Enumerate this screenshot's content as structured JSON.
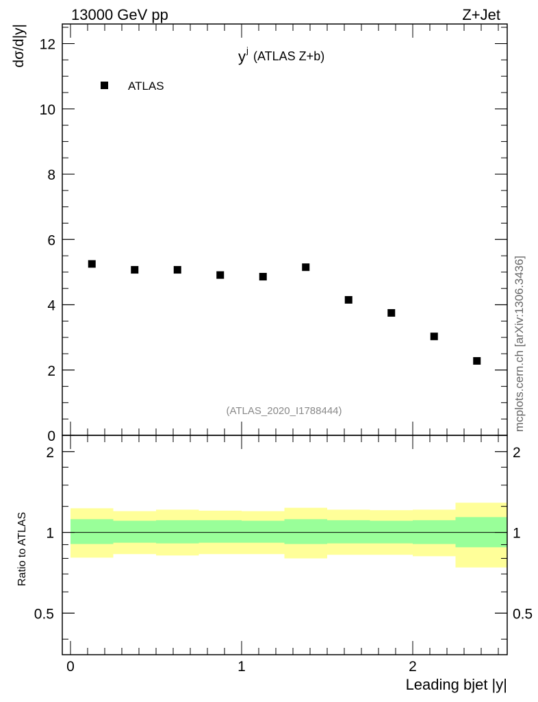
{
  "header": {
    "left": "13000 GeV pp",
    "right": "Z+Jet"
  },
  "side_label": "mcplots.cern.ch [arXiv:1306.3436]",
  "chart_data": [
    {
      "type": "scatter",
      "panel": "main",
      "title_main": "y",
      "title_sup": "j",
      "title_rest": "(ATLAS Z+b)",
      "ylabel": "dσ/d|y|",
      "analysis_label": "(ATLAS_2020_I1788444)",
      "legend": {
        "label": "ATLAS",
        "placement": "top-left"
      },
      "xlim": [
        0,
        2.55
      ],
      "ylim": [
        0,
        12.6
      ],
      "yticks": [
        0,
        2,
        4,
        6,
        8,
        10,
        12
      ],
      "ytick_labels": [
        "0",
        "2",
        "4",
        "6",
        "8",
        "10",
        "12"
      ],
      "series": [
        {
          "name": "ATLAS",
          "color": "#000000",
          "x": [
            0.125,
            0.375,
            0.625,
            0.875,
            1.125,
            1.375,
            1.625,
            1.875,
            2.125,
            2.375
          ],
          "y": [
            5.25,
            5.07,
            5.07,
            4.91,
            4.86,
            5.15,
            4.15,
            3.75,
            3.03,
            2.28
          ]
        }
      ]
    },
    {
      "type": "area",
      "panel": "ratio",
      "ylabel": "Ratio to ATLAS",
      "xlabel": "Leading bjet |y|",
      "ylim": [
        0.35,
        2.3
      ],
      "xticks": [
        0,
        1,
        2
      ],
      "xtick_labels": [
        "0",
        "1",
        "2"
      ],
      "yticks": [
        0.5,
        1,
        2
      ],
      "ytick_labels": [
        "0.5",
        "1",
        "2"
      ],
      "bins": [
        {
          "lo": 0.0,
          "hi": 0.25,
          "green": [
            0.905,
            1.12
          ],
          "yellow": [
            0.805,
            1.23
          ]
        },
        {
          "lo": 0.25,
          "hi": 0.5,
          "green": [
            0.915,
            1.105
          ],
          "yellow": [
            0.83,
            1.2
          ]
        },
        {
          "lo": 0.5,
          "hi": 0.75,
          "green": [
            0.91,
            1.11
          ],
          "yellow": [
            0.82,
            1.215
          ]
        },
        {
          "lo": 0.75,
          "hi": 1.0,
          "green": [
            0.915,
            1.11
          ],
          "yellow": [
            0.83,
            1.205
          ]
        },
        {
          "lo": 1.0,
          "hi": 1.25,
          "green": [
            0.915,
            1.105
          ],
          "yellow": [
            0.83,
            1.2
          ]
        },
        {
          "lo": 1.25,
          "hi": 1.5,
          "green": [
            0.905,
            1.12
          ],
          "yellow": [
            0.8,
            1.235
          ]
        },
        {
          "lo": 1.5,
          "hi": 1.75,
          "green": [
            0.91,
            1.11
          ],
          "yellow": [
            0.825,
            1.215
          ]
        },
        {
          "lo": 1.75,
          "hi": 2.0,
          "green": [
            0.91,
            1.105
          ],
          "yellow": [
            0.825,
            1.21
          ]
        },
        {
          "lo": 2.0,
          "hi": 2.25,
          "green": [
            0.905,
            1.11
          ],
          "yellow": [
            0.815,
            1.215
          ]
        },
        {
          "lo": 2.25,
          "hi": 2.55,
          "green": [
            0.88,
            1.14
          ],
          "yellow": [
            0.74,
            1.29
          ]
        }
      ],
      "colors": {
        "green": "#99ff99",
        "yellow": "#ffff99",
        "line": "#000000"
      }
    }
  ]
}
